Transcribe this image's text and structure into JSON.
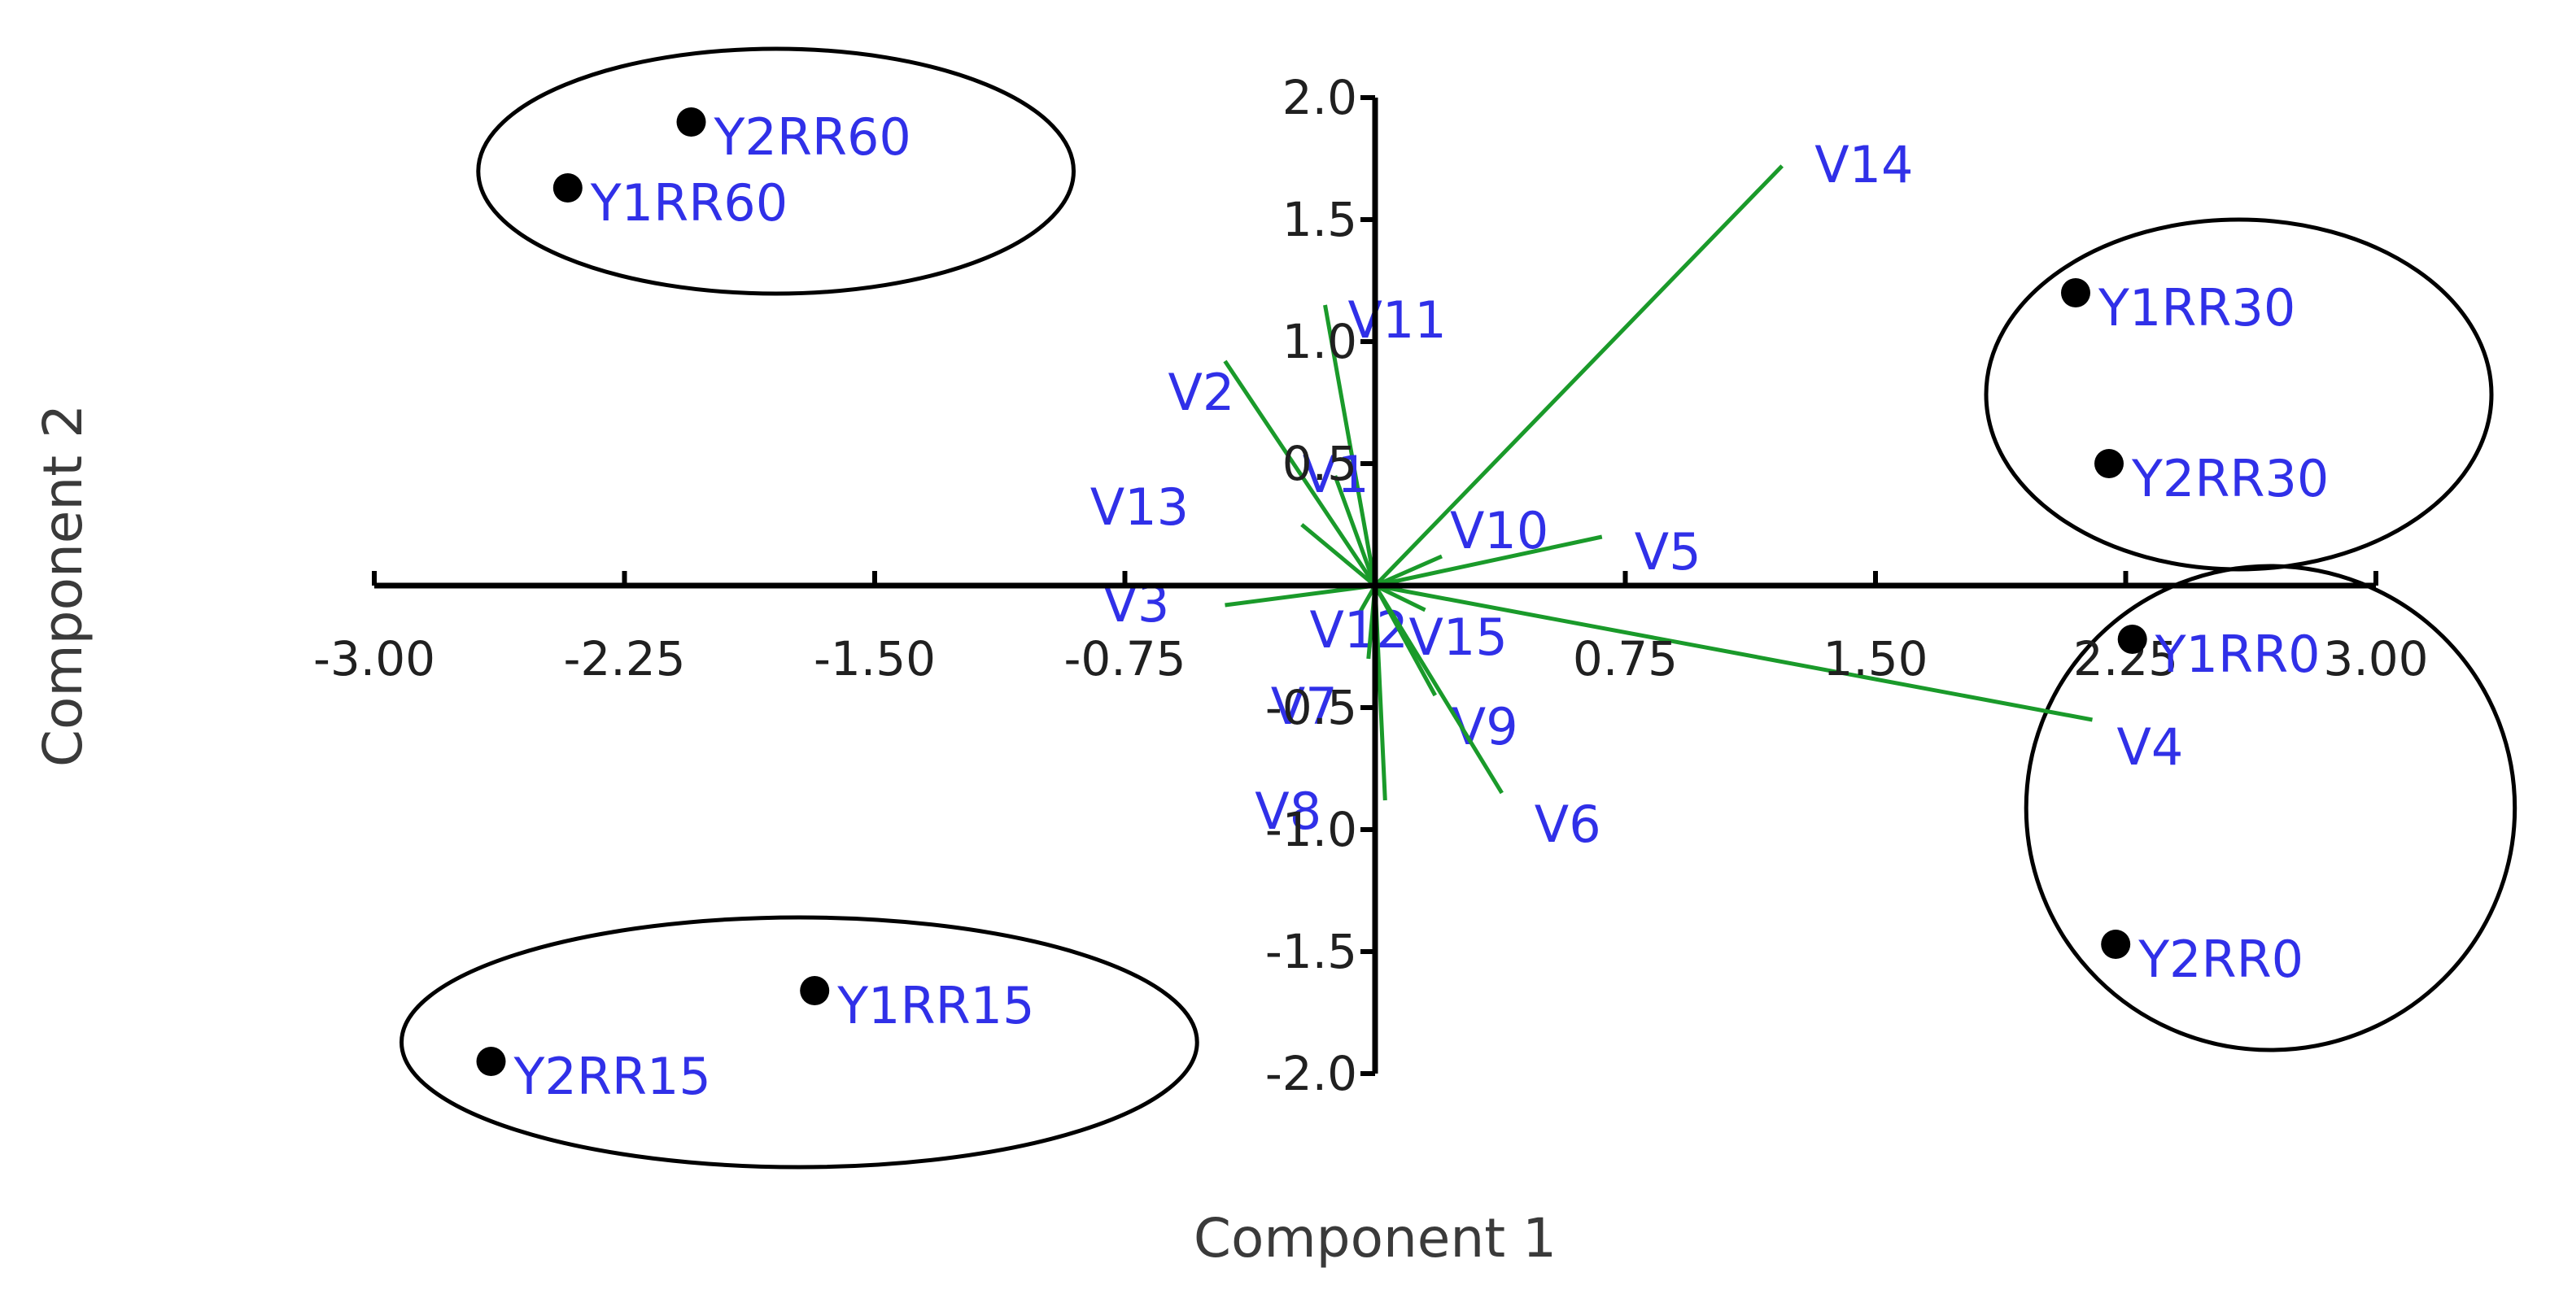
{
  "chart_data": {
    "type": "scatter",
    "subtype": "biplot",
    "title": "",
    "xlabel": "Component 1",
    "ylabel": "Component 2",
    "xlim": [
      -3.0,
      3.0
    ],
    "ylim": [
      -2.0,
      2.0
    ],
    "x_ticks": [
      "-3.00",
      "-2.25",
      "-1.50",
      "-0.75",
      "0.75",
      "1.50",
      "2.25",
      "3.00"
    ],
    "x_tick_values": [
      -3.0,
      -2.25,
      -1.5,
      -0.75,
      0.75,
      1.5,
      2.25,
      3.0
    ],
    "y_ticks": [
      "2.0",
      "1.5",
      "1.0",
      "0.5",
      "-0.5",
      "-1.0",
      "-1.5",
      "-2.0"
    ],
    "y_tick_values": [
      2.0,
      1.5,
      1.0,
      0.5,
      -0.5,
      -1.0,
      -1.5,
      -2.0
    ],
    "grid": false,
    "colors": {
      "points": "#000000",
      "labels": "#3030e8",
      "loadings": "#1a9a2a",
      "axes": "#000000"
    },
    "points": [
      {
        "label": "Y2RR60",
        "x": -2.05,
        "y": 1.9
      },
      {
        "label": "Y1RR60",
        "x": -2.42,
        "y": 1.63
      },
      {
        "label": "Y1RR30",
        "x": 2.1,
        "y": 1.2
      },
      {
        "label": "Y2RR30",
        "x": 2.2,
        "y": 0.5
      },
      {
        "label": "Y1RR0",
        "x": 2.27,
        "y": -0.22
      },
      {
        "label": "Y2RR0",
        "x": 2.22,
        "y": -1.47
      },
      {
        "label": "Y1RR15",
        "x": -1.68,
        "y": -1.66
      },
      {
        "label": "Y2RR15",
        "x": -2.65,
        "y": -1.95
      }
    ],
    "loadings": [
      {
        "label": "V14",
        "x": 1.22,
        "y": 1.72
      },
      {
        "label": "V11",
        "x": -0.15,
        "y": 1.15
      },
      {
        "label": "V2",
        "x": -0.45,
        "y": 0.92
      },
      {
        "label": "V1",
        "x": -0.12,
        "y": 0.45
      },
      {
        "label": "V13",
        "x": -0.22,
        "y": 0.25
      },
      {
        "label": "V10",
        "x": 0.2,
        "y": 0.12
      },
      {
        "label": "V5",
        "x": 0.68,
        "y": 0.2
      },
      {
        "label": "V3",
        "x": -0.45,
        "y": -0.08
      },
      {
        "label": "V12",
        "x": -0.05,
        "y": -0.12
      },
      {
        "label": "V15",
        "x": 0.15,
        "y": -0.1
      },
      {
        "label": "V7",
        "x": -0.02,
        "y": -0.3
      },
      {
        "label": "V9",
        "x": 0.18,
        "y": -0.45
      },
      {
        "label": "V4",
        "x": 2.15,
        "y": -0.55
      },
      {
        "label": "V6",
        "x": 0.38,
        "y": -0.85
      },
      {
        "label": "V8",
        "x": 0.03,
        "y": -0.88
      }
    ],
    "clusters": [
      [
        "Y2RR60",
        "Y1RR60"
      ],
      [
        "Y1RR30",
        "Y2RR30"
      ],
      [
        "Y1RR0",
        "Y2RR0"
      ],
      [
        "Y1RR15",
        "Y2RR15"
      ]
    ]
  }
}
